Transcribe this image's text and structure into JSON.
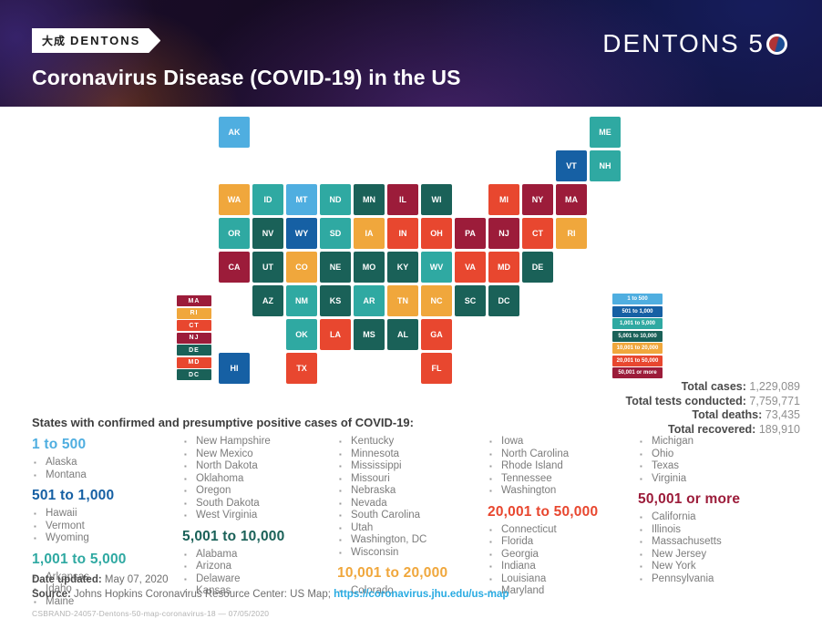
{
  "header": {
    "logo_cjk": "大成",
    "logo_word": "DENTONS",
    "title": "Coronavirus Disease (COVID-19) in the US",
    "brand_right_text": "DENTONS 5"
  },
  "categories": [
    {
      "label": "1 to 500",
      "color": "#4FAEE0"
    },
    {
      "label": "501 to 1,000",
      "color": "#1660A4"
    },
    {
      "label": "1,001 to 5,000",
      "color": "#2FA9A2"
    },
    {
      "label": "5,001 to 10,000",
      "color": "#1A6158"
    },
    {
      "label": "10,001 to 20,000",
      "color": "#F0A73C"
    },
    {
      "label": "20,001 to 50,000",
      "color": "#E8472F"
    },
    {
      "label": "50,001 or more",
      "color": "#9C1C3A"
    }
  ],
  "map": {
    "small_states_legend": [
      {
        "abbr": "MA",
        "cat": 6
      },
      {
        "abbr": "RI",
        "cat": 4
      },
      {
        "abbr": "CT",
        "cat": 5
      },
      {
        "abbr": "NJ",
        "cat": 6
      },
      {
        "abbr": "DE",
        "cat": 3
      },
      {
        "abbr": "MD",
        "cat": 5
      },
      {
        "abbr": "DC",
        "cat": 3
      }
    ],
    "states": [
      {
        "abbr": "AK",
        "cat": 0,
        "row": 0,
        "col": 0
      },
      {
        "abbr": "ME",
        "cat": 2,
        "row": 0,
        "col": 11
      },
      {
        "abbr": "VT",
        "cat": 1,
        "row": 1,
        "col": 10
      },
      {
        "abbr": "NH",
        "cat": 2,
        "row": 1,
        "col": 11
      },
      {
        "abbr": "WA",
        "cat": 4,
        "row": 2,
        "col": 0
      },
      {
        "abbr": "ID",
        "cat": 2,
        "row": 2,
        "col": 1
      },
      {
        "abbr": "MT",
        "cat": 0,
        "row": 2,
        "col": 2
      },
      {
        "abbr": "ND",
        "cat": 2,
        "row": 2,
        "col": 3
      },
      {
        "abbr": "MN",
        "cat": 3,
        "row": 2,
        "col": 4
      },
      {
        "abbr": "IL",
        "cat": 6,
        "row": 2,
        "col": 5
      },
      {
        "abbr": "WI",
        "cat": 3,
        "row": 2,
        "col": 6
      },
      {
        "abbr": "MI",
        "cat": 5,
        "row": 2,
        "col": 8
      },
      {
        "abbr": "NY",
        "cat": 6,
        "row": 2,
        "col": 9
      },
      {
        "abbr": "MA",
        "cat": 6,
        "row": 2,
        "col": 10
      },
      {
        "abbr": "OR",
        "cat": 2,
        "row": 3,
        "col": 0
      },
      {
        "abbr": "NV",
        "cat": 3,
        "row": 3,
        "col": 1
      },
      {
        "abbr": "WY",
        "cat": 1,
        "row": 3,
        "col": 2
      },
      {
        "abbr": "SD",
        "cat": 2,
        "row": 3,
        "col": 3
      },
      {
        "abbr": "IA",
        "cat": 4,
        "row": 3,
        "col": 4
      },
      {
        "abbr": "IN",
        "cat": 5,
        "row": 3,
        "col": 5
      },
      {
        "abbr": "OH",
        "cat": 5,
        "row": 3,
        "col": 6
      },
      {
        "abbr": "PA",
        "cat": 6,
        "row": 3,
        "col": 7
      },
      {
        "abbr": "NJ",
        "cat": 6,
        "row": 3,
        "col": 8
      },
      {
        "abbr": "CT",
        "cat": 5,
        "row": 3,
        "col": 9
      },
      {
        "abbr": "RI",
        "cat": 4,
        "row": 3,
        "col": 10
      },
      {
        "abbr": "CA",
        "cat": 6,
        "row": 4,
        "col": 0
      },
      {
        "abbr": "UT",
        "cat": 3,
        "row": 4,
        "col": 1
      },
      {
        "abbr": "CO",
        "cat": 4,
        "row": 4,
        "col": 2
      },
      {
        "abbr": "NE",
        "cat": 3,
        "row": 4,
        "col": 3
      },
      {
        "abbr": "MO",
        "cat": 3,
        "row": 4,
        "col": 4
      },
      {
        "abbr": "KY",
        "cat": 3,
        "row": 4,
        "col": 5
      },
      {
        "abbr": "WV",
        "cat": 2,
        "row": 4,
        "col": 6
      },
      {
        "abbr": "VA",
        "cat": 5,
        "row": 4,
        "col": 7
      },
      {
        "abbr": "MD",
        "cat": 5,
        "row": 4,
        "col": 8
      },
      {
        "abbr": "DE",
        "cat": 3,
        "row": 4,
        "col": 9
      },
      {
        "abbr": "AZ",
        "cat": 3,
        "row": 5,
        "col": 1
      },
      {
        "abbr": "NM",
        "cat": 2,
        "row": 5,
        "col": 2
      },
      {
        "abbr": "KS",
        "cat": 3,
        "row": 5,
        "col": 3
      },
      {
        "abbr": "AR",
        "cat": 2,
        "row": 5,
        "col": 4
      },
      {
        "abbr": "TN",
        "cat": 4,
        "row": 5,
        "col": 5
      },
      {
        "abbr": "NC",
        "cat": 4,
        "row": 5,
        "col": 6
      },
      {
        "abbr": "SC",
        "cat": 3,
        "row": 5,
        "col": 7
      },
      {
        "abbr": "DC",
        "cat": 3,
        "row": 5,
        "col": 8
      },
      {
        "abbr": "OK",
        "cat": 2,
        "row": 6,
        "col": 2
      },
      {
        "abbr": "LA",
        "cat": 5,
        "row": 6,
        "col": 3
      },
      {
        "abbr": "MS",
        "cat": 3,
        "row": 6,
        "col": 4
      },
      {
        "abbr": "AL",
        "cat": 3,
        "row": 6,
        "col": 5
      },
      {
        "abbr": "GA",
        "cat": 5,
        "row": 6,
        "col": 6
      },
      {
        "abbr": "HI",
        "cat": 1,
        "row": 7,
        "col": 0
      },
      {
        "abbr": "TX",
        "cat": 5,
        "row": 7,
        "col": 2
      },
      {
        "abbr": "FL",
        "cat": 5,
        "row": 7,
        "col": 6
      }
    ]
  },
  "stats": [
    {
      "label": "Total cases:",
      "value": "1,229,089"
    },
    {
      "label": "Total tests conducted:",
      "value": "7,759,771"
    },
    {
      "label": "Total deaths:",
      "value": "73,435"
    },
    {
      "label": "Total recovered:",
      "value": "189,910"
    }
  ],
  "list_section": {
    "heading": "States with confirmed and presumptive positive cases of COVID-19:",
    "columns": [
      {
        "blocks": [
          {
            "heading": "1 to 500",
            "cat": 0
          },
          {
            "items": [
              "Alaska",
              "Montana"
            ]
          },
          {
            "heading": "501 to 1,000",
            "cat": 1
          },
          {
            "items": [
              "Hawaii",
              "Vermont",
              "Wyoming"
            ]
          },
          {
            "heading": "1,001 to 5,000",
            "cat": 2
          },
          {
            "items": [
              "Arkansas",
              "Idaho",
              "Maine"
            ]
          }
        ]
      },
      {
        "blocks": [
          {
            "items": [
              "New Hampshire",
              "New Mexico",
              "North Dakota",
              "Oklahoma",
              "Oregon",
              "South Dakota",
              "West Virginia"
            ]
          },
          {
            "heading": "5,001 to 10,000",
            "cat": 3
          },
          {
            "items": [
              "Alabama",
              "Arizona",
              "Delaware",
              "Kansas"
            ]
          }
        ]
      },
      {
        "blocks": [
          {
            "items": [
              "Kentucky",
              "Minnesota",
              "Mississippi",
              "Missouri",
              "Nebraska",
              "Nevada",
              "South Carolina",
              "Utah",
              "Washington, DC",
              "Wisconsin"
            ]
          },
          {
            "heading": "10,001 to 20,000",
            "cat": 4
          },
          {
            "items": [
              "Colorado"
            ]
          }
        ]
      },
      {
        "blocks": [
          {
            "items": [
              "Iowa",
              "North Carolina",
              "Rhode Island",
              "Tennessee",
              "Washington"
            ]
          },
          {
            "heading": "20,001 to 50,000",
            "cat": 5
          },
          {
            "items": [
              "Connecticut",
              "Florida",
              "Georgia",
              "Indiana",
              "Louisiana",
              "Maryland"
            ]
          }
        ]
      },
      {
        "blocks": [
          {
            "items": [
              "Michigan",
              "Ohio",
              "Texas",
              "Virginia"
            ]
          },
          {
            "heading": "50,001 or more",
            "cat": 6
          },
          {
            "items": [
              "California",
              "Illinois",
              "Massachusetts",
              "New Jersey",
              "New York",
              "Pennsylvania"
            ]
          }
        ]
      }
    ]
  },
  "footer": {
    "date_label": "Date updated:",
    "date_value": "May 07, 2020",
    "source_label": "Source:",
    "source_text": "Johns Hopkins Coronavirus Resource Center: US Map;",
    "source_link": "https://coronavirus.jhu.edu/us-map",
    "small_print": "CSBRAND-24057-Dentons-50-map-coronavirus-18 — 07/05/2020"
  }
}
